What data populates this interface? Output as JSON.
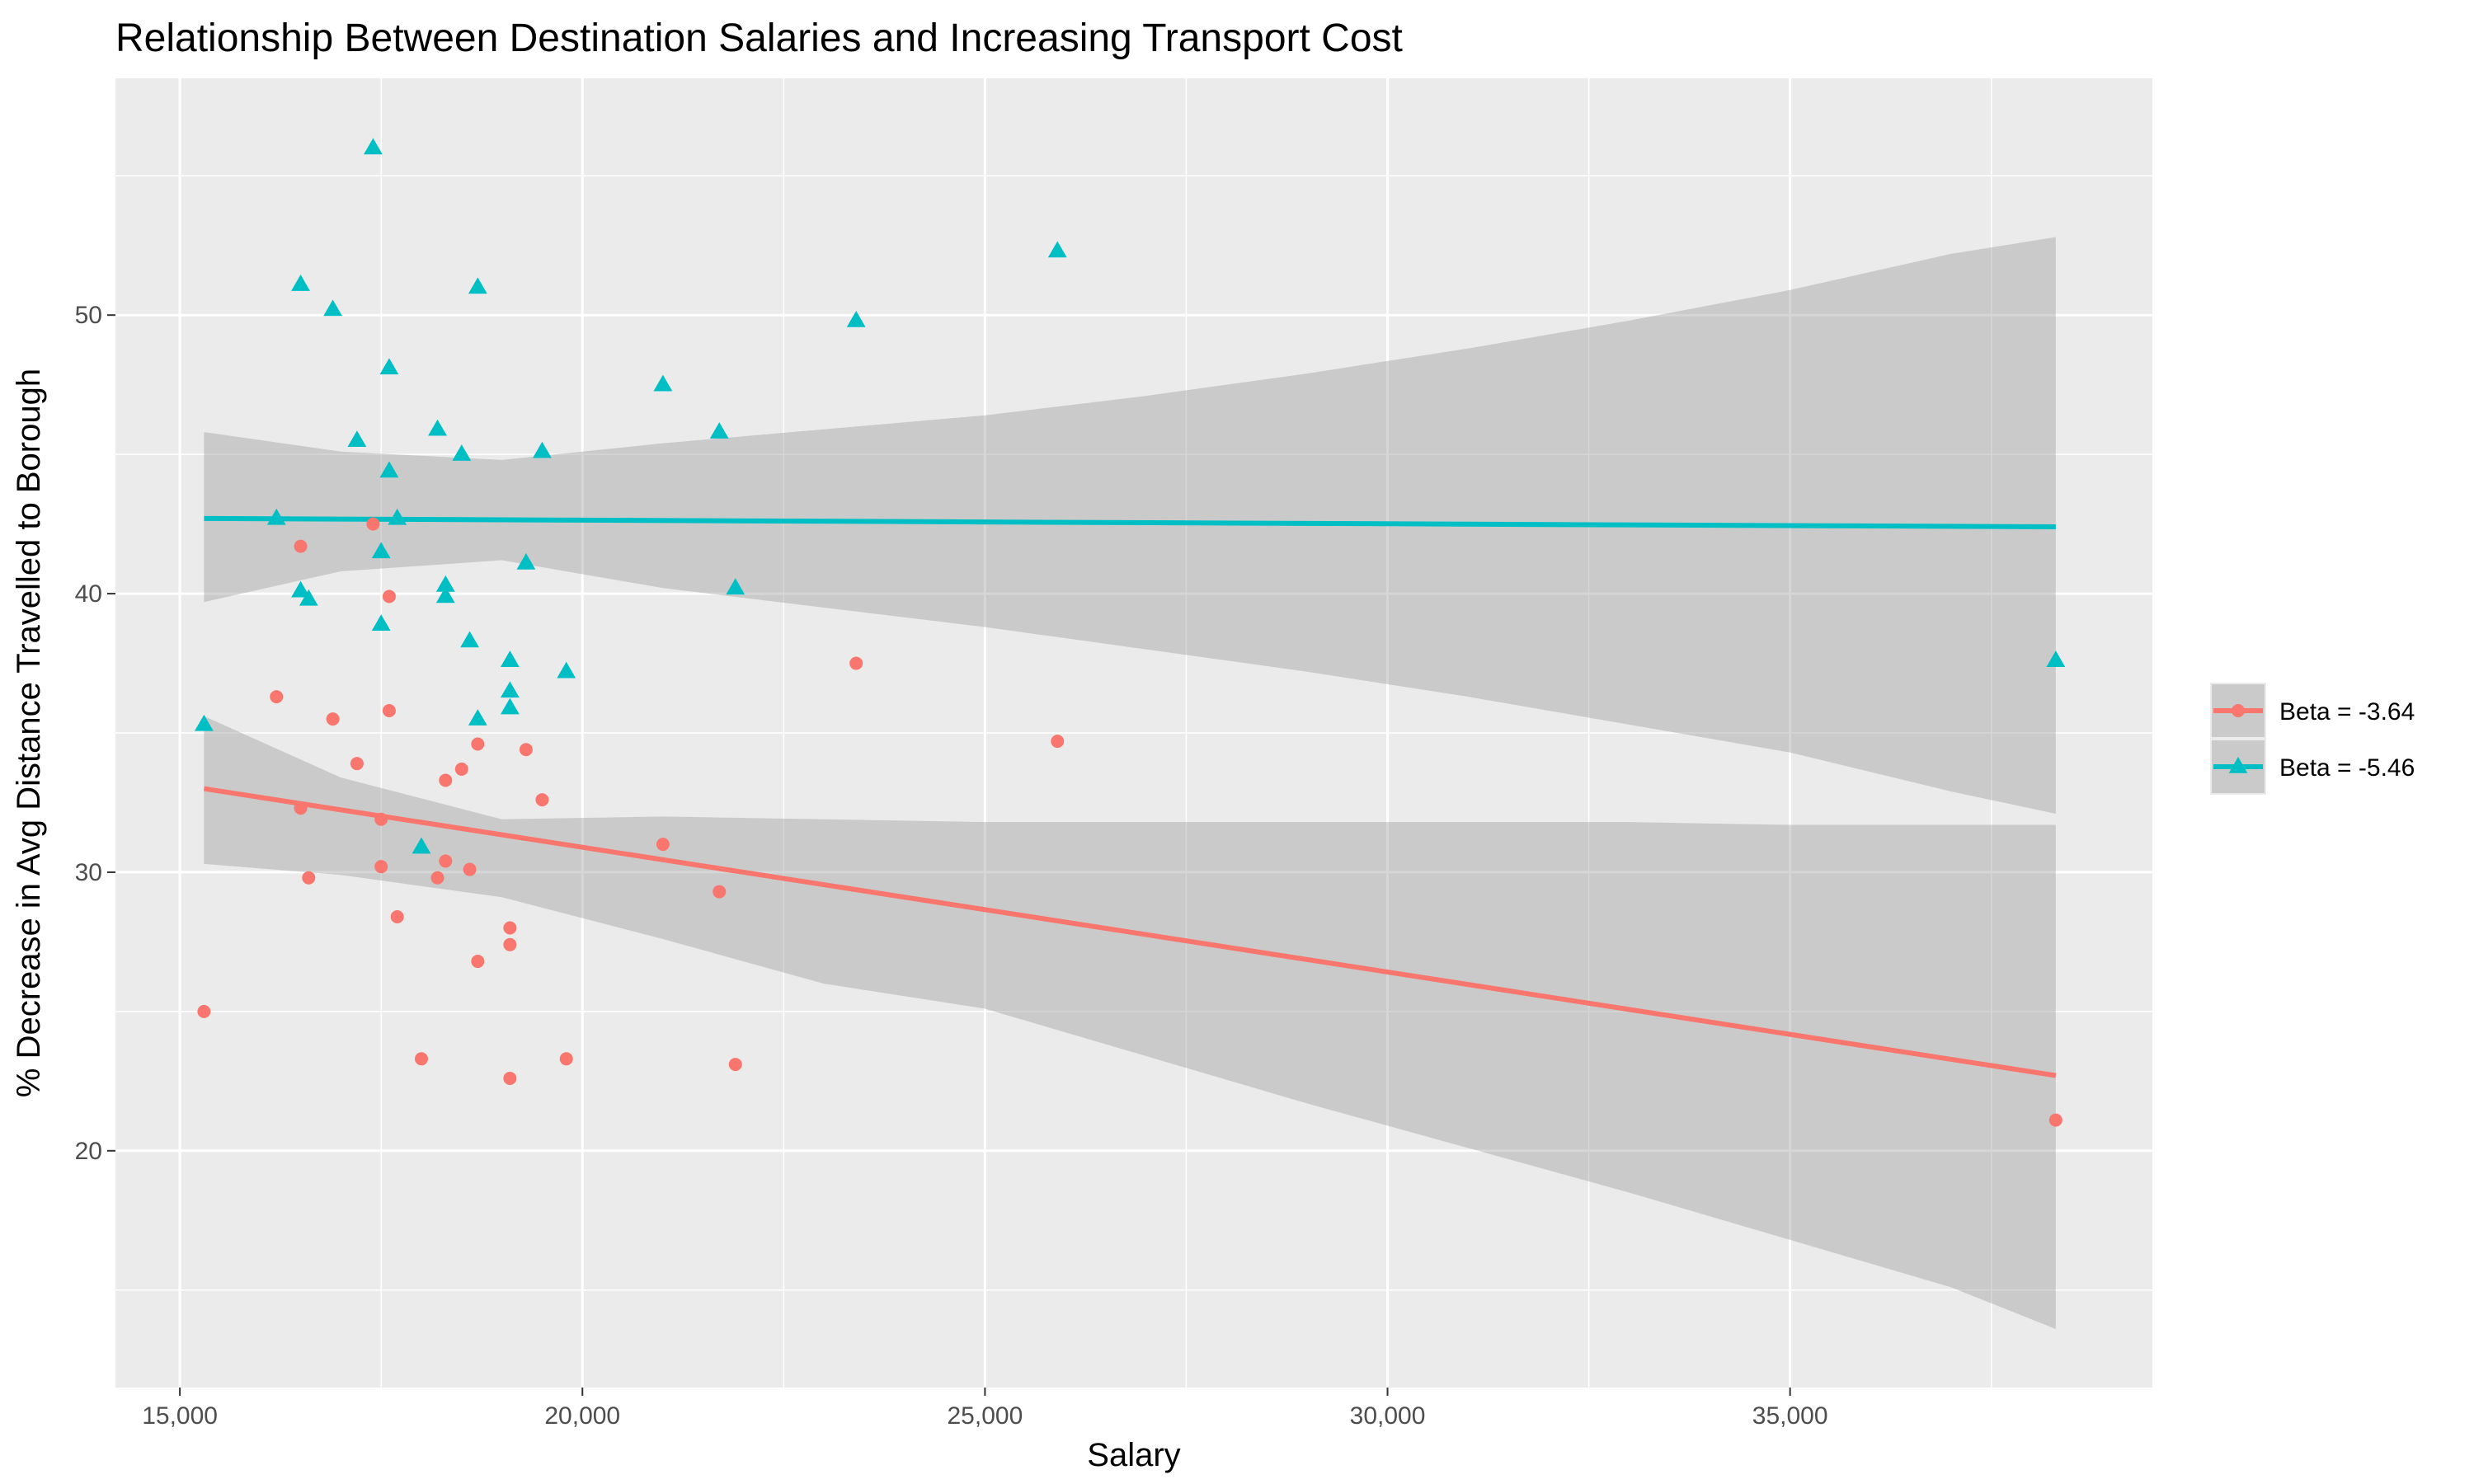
{
  "chart_data": {
    "type": "scatter",
    "title": "Relationship Between Destination Salaries and Increasing Transport Cost",
    "xlabel": "Salary",
    "ylabel": "% Decrease in Avg Distance Travelled to Borough",
    "xlim": [
      14200,
      39500
    ],
    "ylim": [
      11.5,
      58.5
    ],
    "x_ticks": [
      15000,
      20000,
      25000,
      30000,
      35000
    ],
    "x_tick_labels": [
      "15,000",
      "20,000",
      "25,000",
      "30,000",
      "35,000"
    ],
    "y_ticks": [
      20,
      30,
      40,
      50
    ],
    "y_tick_labels": [
      "20",
      "30",
      "40",
      "50"
    ],
    "grid": true,
    "legend_position": "right",
    "series": [
      {
        "name": "Beta = -3.64",
        "color": "#F8766D",
        "marker": "circle",
        "points": [
          [
            15300,
            25.0
          ],
          [
            16200,
            36.3
          ],
          [
            16500,
            41.7
          ],
          [
            16500,
            32.3
          ],
          [
            16600,
            29.8
          ],
          [
            16900,
            35.5
          ],
          [
            17200,
            33.9
          ],
          [
            17400,
            42.5
          ],
          [
            17500,
            31.9
          ],
          [
            17500,
            30.2
          ],
          [
            17600,
            39.9
          ],
          [
            17600,
            35.8
          ],
          [
            17700,
            28.4
          ],
          [
            18000,
            23.3
          ],
          [
            18200,
            29.8
          ],
          [
            18300,
            33.3
          ],
          [
            18300,
            30.4
          ],
          [
            18500,
            33.7
          ],
          [
            18600,
            30.1
          ],
          [
            18700,
            34.6
          ],
          [
            18700,
            26.8
          ],
          [
            19100,
            28.0
          ],
          [
            19100,
            27.4
          ],
          [
            19100,
            22.6
          ],
          [
            19300,
            34.4
          ],
          [
            19500,
            32.6
          ],
          [
            19800,
            23.3
          ],
          [
            21000,
            31.0
          ],
          [
            21700,
            29.3
          ],
          [
            21900,
            23.1
          ],
          [
            23400,
            37.5
          ],
          [
            25900,
            34.7
          ],
          [
            38300,
            21.1
          ]
        ],
        "fit_line": [
          [
            15300,
            33.0
          ],
          [
            38300,
            22.7
          ]
        ],
        "ci_band": {
          "x": [
            15300,
            17000,
            19000,
            21000,
            23000,
            25000,
            27000,
            29000,
            31000,
            33000,
            35000,
            37000,
            38300
          ],
          "lower": [
            30.3,
            29.9,
            29.1,
            27.6,
            26.0,
            25.1,
            23.4,
            21.7,
            20.1,
            18.5,
            16.8,
            15.1,
            13.6
          ],
          "upper": [
            35.6,
            33.4,
            31.9,
            32.0,
            31.9,
            31.8,
            31.8,
            31.8,
            31.8,
            31.8,
            31.7,
            31.7,
            31.7
          ]
        }
      },
      {
        "name": "Beta = -5.46",
        "color": "#00BFC4",
        "marker": "triangle",
        "points": [
          [
            15300,
            35.3
          ],
          [
            16200,
            42.7
          ],
          [
            16500,
            51.1
          ],
          [
            16500,
            40.1
          ],
          [
            16600,
            39.8
          ],
          [
            16900,
            50.2
          ],
          [
            17200,
            45.5
          ],
          [
            17400,
            56.0
          ],
          [
            17500,
            41.5
          ],
          [
            17500,
            38.9
          ],
          [
            17600,
            48.1
          ],
          [
            17600,
            44.4
          ],
          [
            17700,
            42.7
          ],
          [
            18000,
            30.9
          ],
          [
            18200,
            45.9
          ],
          [
            18300,
            40.3
          ],
          [
            18300,
            39.9
          ],
          [
            18500,
            45.0
          ],
          [
            18600,
            38.3
          ],
          [
            18700,
            51.0
          ],
          [
            18700,
            35.5
          ],
          [
            19100,
            37.6
          ],
          [
            19100,
            36.5
          ],
          [
            19100,
            35.9
          ],
          [
            19300,
            41.1
          ],
          [
            19500,
            45.1
          ],
          [
            19800,
            37.2
          ],
          [
            21000,
            47.5
          ],
          [
            21700,
            45.8
          ],
          [
            21900,
            40.2
          ],
          [
            23400,
            49.8
          ],
          [
            25900,
            52.3
          ],
          [
            38300,
            37.6
          ]
        ],
        "fit_line": [
          [
            15300,
            42.7
          ],
          [
            38300,
            42.4
          ]
        ],
        "ci_band": {
          "x": [
            15300,
            17000,
            19000,
            21000,
            23000,
            25000,
            27000,
            29000,
            31000,
            33000,
            35000,
            37000,
            38300
          ],
          "lower": [
            39.7,
            40.8,
            41.2,
            40.2,
            39.5,
            38.8,
            38.0,
            37.2,
            36.3,
            35.3,
            34.3,
            32.9,
            32.1
          ],
          "upper": [
            45.8,
            45.1,
            44.8,
            45.4,
            45.9,
            46.4,
            47.1,
            47.9,
            48.8,
            49.8,
            50.9,
            52.2,
            52.8
          ]
        }
      }
    ]
  }
}
